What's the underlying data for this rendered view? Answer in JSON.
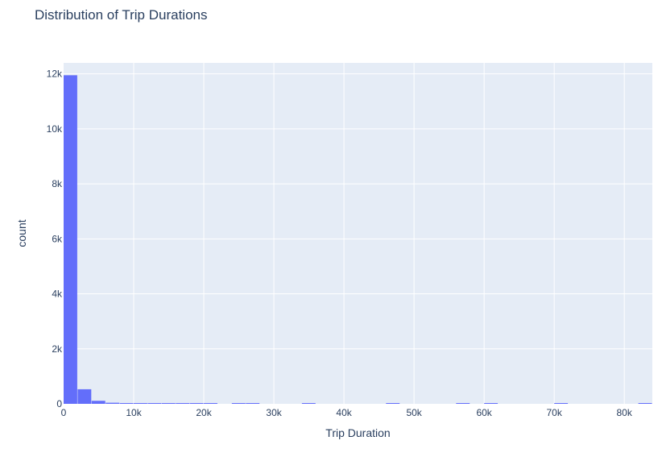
{
  "chart_data": {
    "type": "bar",
    "title": "Distribution of Trip Durations",
    "xlabel": "Trip Duration",
    "ylabel": "count",
    "bin_width": 2000,
    "xlim": [
      0,
      84000
    ],
    "ylim": [
      0,
      12400
    ],
    "bar_color": "#636efa",
    "plot_bg": "#e5ecf6",
    "grid": true,
    "x_ticks": [
      0,
      10000,
      20000,
      30000,
      40000,
      50000,
      60000,
      70000,
      80000
    ],
    "x_tick_labels": [
      "0",
      "10k",
      "20k",
      "30k",
      "40k",
      "50k",
      "60k",
      "70k",
      "80k"
    ],
    "y_ticks": [
      0,
      2000,
      4000,
      6000,
      8000,
      10000,
      12000
    ],
    "y_tick_labels": [
      "0",
      "2k",
      "4k",
      "6k",
      "8k",
      "10k",
      "12k"
    ],
    "bins": [
      {
        "x0": 0,
        "x1": 2000,
        "count": 11950
      },
      {
        "x0": 2000,
        "x1": 4000,
        "count": 530
      },
      {
        "x0": 4000,
        "x1": 6000,
        "count": 110
      },
      {
        "x0": 6000,
        "x1": 8000,
        "count": 40
      },
      {
        "x0": 8000,
        "x1": 10000,
        "count": 12
      },
      {
        "x0": 10000,
        "x1": 12000,
        "count": 8
      },
      {
        "x0": 12000,
        "x1": 14000,
        "count": 6
      },
      {
        "x0": 14000,
        "x1": 16000,
        "count": 5
      },
      {
        "x0": 16000,
        "x1": 18000,
        "count": 4
      },
      {
        "x0": 18000,
        "x1": 20000,
        "count": 4
      },
      {
        "x0": 20000,
        "x1": 22000,
        "count": 3
      },
      {
        "x0": 24000,
        "x1": 26000,
        "count": 3
      },
      {
        "x0": 26000,
        "x1": 28000,
        "count": 2
      },
      {
        "x0": 34000,
        "x1": 36000,
        "count": 2
      },
      {
        "x0": 46000,
        "x1": 48000,
        "count": 2
      },
      {
        "x0": 56000,
        "x1": 58000,
        "count": 2
      },
      {
        "x0": 60000,
        "x1": 62000,
        "count": 2
      },
      {
        "x0": 70000,
        "x1": 72000,
        "count": 2
      },
      {
        "x0": 82000,
        "x1": 84000,
        "count": 2
      }
    ]
  }
}
